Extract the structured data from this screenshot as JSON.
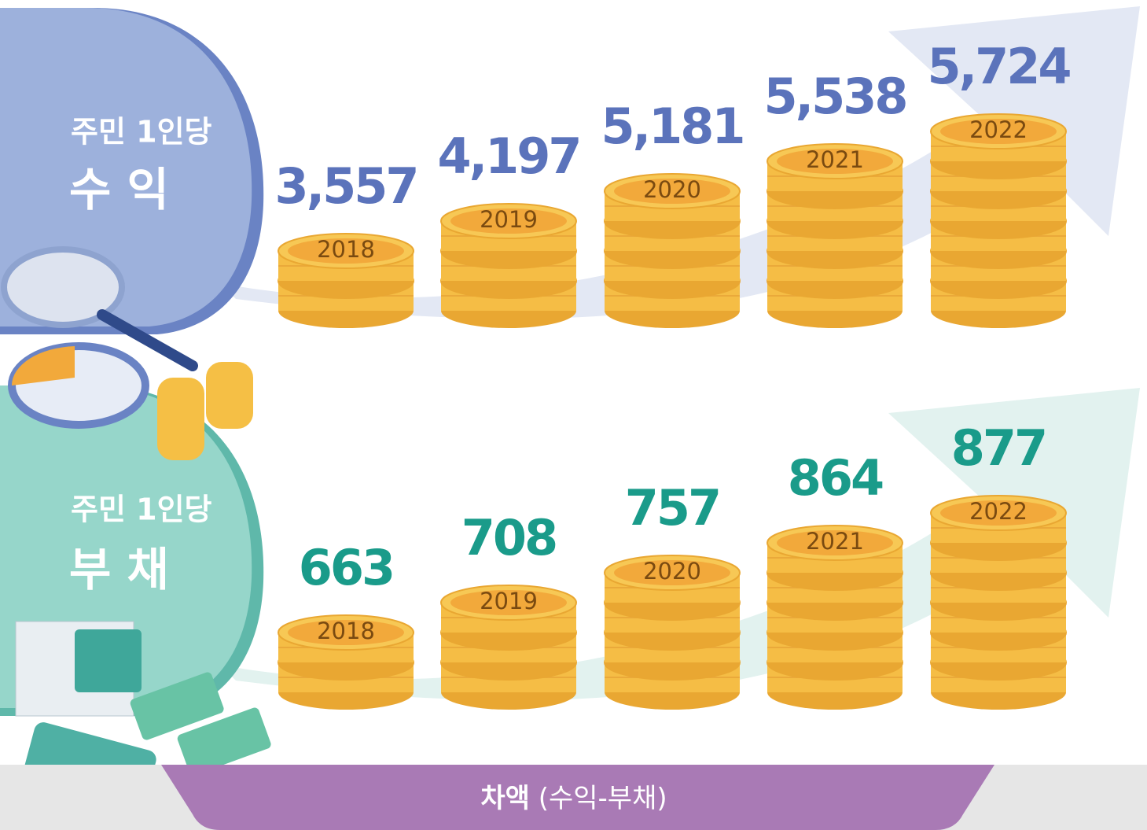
{
  "sections": [
    {
      "label": "주민 1인당",
      "title": "수 익",
      "items": [
        {
          "year": "2018",
          "value": "3,557"
        },
        {
          "year": "2019",
          "value": "4,197"
        },
        {
          "year": "2020",
          "value": "5,181"
        },
        {
          "year": "2021",
          "value": "5,538"
        },
        {
          "year": "2022",
          "value": "5,724"
        }
      ]
    },
    {
      "label": "주민 1인당",
      "title": "부 채",
      "items": [
        {
          "year": "2018",
          "value": "663"
        },
        {
          "year": "2019",
          "value": "708"
        },
        {
          "year": "2020",
          "value": "757"
        },
        {
          "year": "2021",
          "value": "864"
        },
        {
          "year": "2022",
          "value": "877"
        }
      ]
    }
  ],
  "footer": {
    "title": "차액",
    "note": "(수익-부채)"
  }
}
